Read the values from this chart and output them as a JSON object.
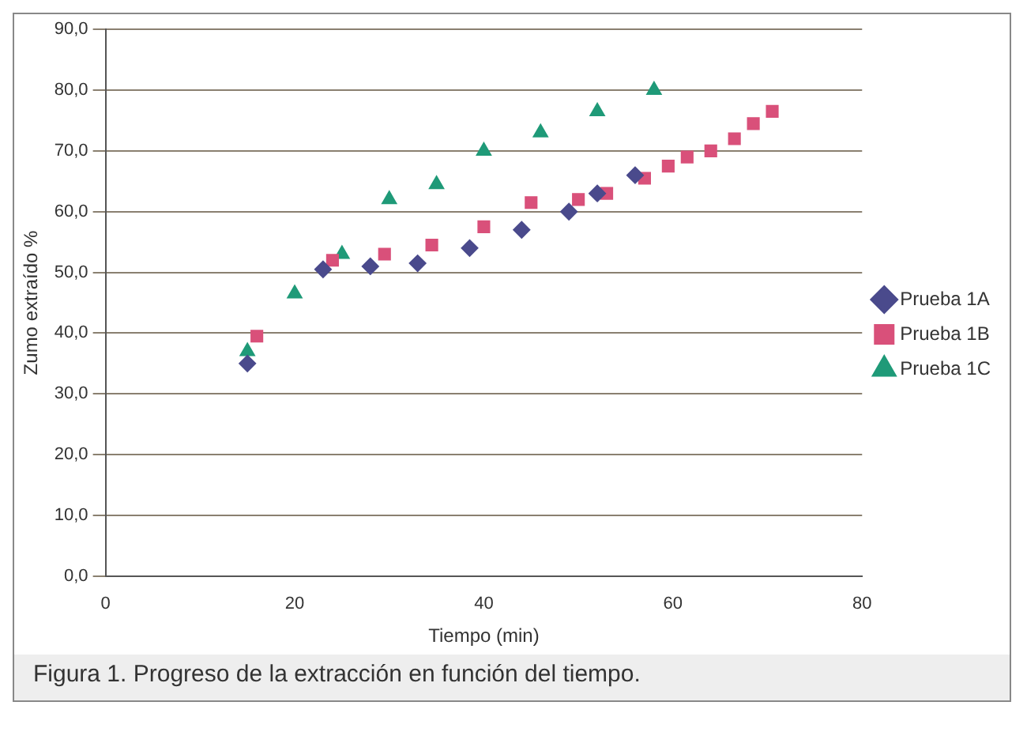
{
  "chart_data": {
    "type": "scatter",
    "xlabel": "Tiempo (min)",
    "ylabel": "Zumo extraído %",
    "annotations": [
      "Figura 1. Progreso de la extracción en función del tiempo."
    ],
    "xlim": [
      0,
      80
    ],
    "xticks": [
      0,
      20,
      40,
      60,
      80
    ],
    "ylim": [
      0,
      90
    ],
    "yticks": [
      {
        "value": 0,
        "label": "0,0"
      },
      {
        "value": 10,
        "label": "10,0"
      },
      {
        "value": 20,
        "label": "20,0"
      },
      {
        "value": 30,
        "label": "30,0"
      },
      {
        "value": 40,
        "label": "40,0"
      },
      {
        "value": 50,
        "label": "50,0"
      },
      {
        "value": 60,
        "label": "60,0"
      },
      {
        "value": 70,
        "label": "70,0"
      },
      {
        "value": 80,
        "label": "80,0"
      },
      {
        "value": 90,
        "label": "90,0"
      }
    ],
    "grid": "y",
    "legend": "right",
    "series": [
      {
        "name": "Prueba 1A",
        "color": "#4a4a8c",
        "marker": "diamond",
        "x": [
          15,
          23,
          28,
          33,
          38.5,
          44,
          49,
          52,
          56
        ],
        "values": [
          35,
          50.5,
          51,
          51.5,
          54,
          57,
          60,
          63,
          66
        ]
      },
      {
        "name": "Prueba 1B",
        "color": "#d9507a",
        "marker": "square",
        "x": [
          16,
          24,
          29.5,
          34.5,
          40,
          45,
          50,
          53,
          57,
          59.5,
          61.5,
          64,
          66.5,
          68.5,
          70.5
        ],
        "values": [
          39.5,
          52,
          53,
          54.5,
          57.5,
          61.5,
          62,
          63,
          65.5,
          67.5,
          69,
          70,
          72,
          74.5,
          76.5
        ]
      },
      {
        "name": "Prueba 1C",
        "color": "#1f9a78",
        "marker": "triangle",
        "x": [
          15,
          20,
          25,
          30,
          35,
          40,
          46,
          52,
          58
        ],
        "values": [
          37,
          46.5,
          53,
          62,
          64.5,
          70,
          73,
          76.5,
          80
        ]
      }
    ]
  }
}
